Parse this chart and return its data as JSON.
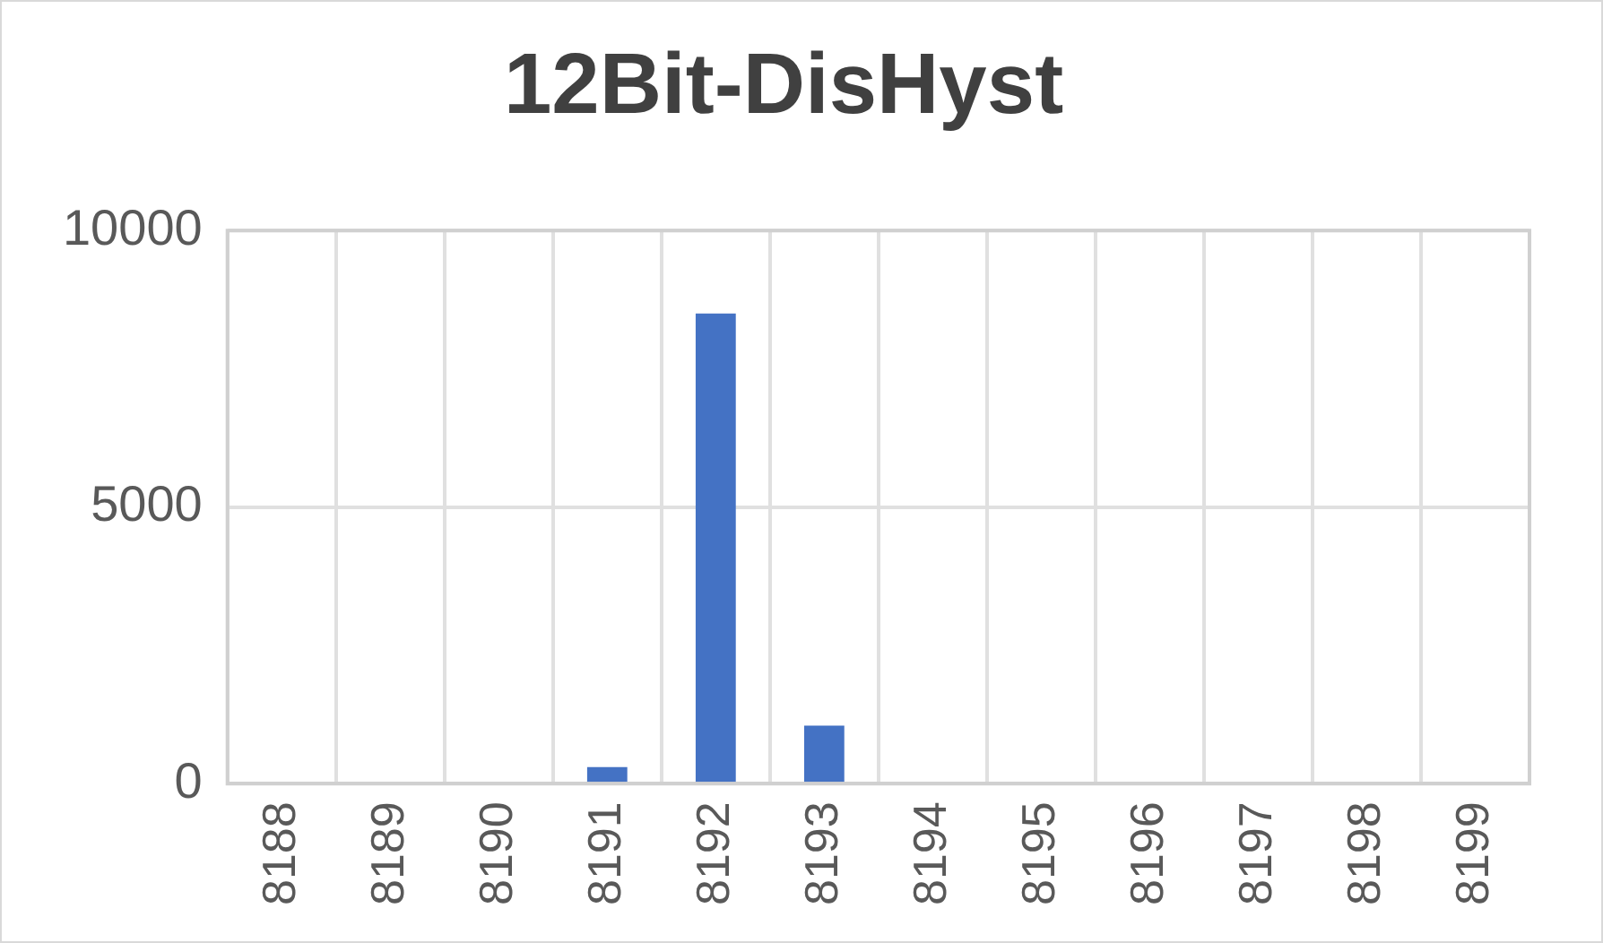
{
  "chart_data": {
    "type": "bar",
    "title": "12Bit-DisHyst",
    "categories": [
      "8188",
      "8189",
      "8190",
      "8191",
      "8192",
      "8193",
      "8194",
      "8195",
      "8196",
      "8197",
      "8198",
      "8199"
    ],
    "values": [
      0,
      0,
      0,
      300,
      8500,
      1050,
      0,
      0,
      0,
      0,
      0,
      0
    ],
    "color": "#4472c4",
    "ylim": [
      0,
      10000
    ],
    "yticks": [
      0,
      5000,
      10000
    ],
    "grid": true,
    "legend": false
  }
}
